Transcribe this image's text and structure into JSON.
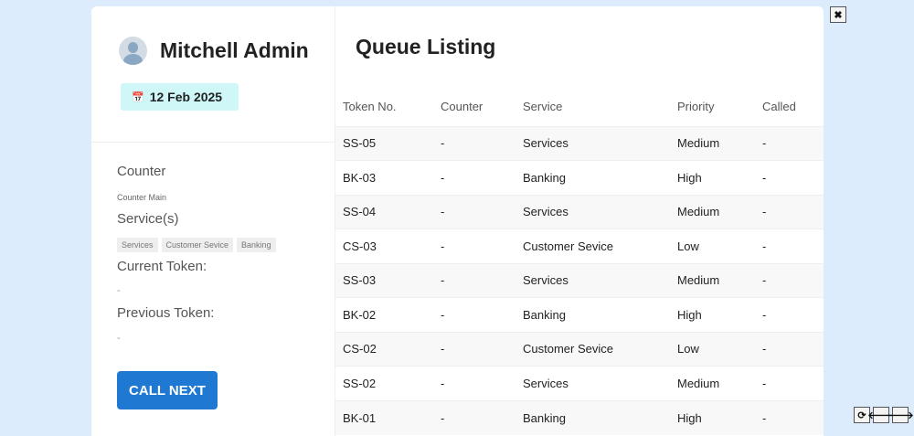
{
  "user": {
    "name": "Mitchell Admin",
    "date": "12 Feb 2025"
  },
  "counter": {
    "label": "Counter",
    "value": "Counter Main",
    "services_label": "Service(s)",
    "services": [
      "Services",
      "Customer Sevice",
      "Banking"
    ],
    "current_label": "Current Token:",
    "current_value": "-",
    "previous_label": "Previous Token:",
    "previous_value": "-",
    "call_next": "CALL NEXT"
  },
  "queue": {
    "title": "Queue Listing",
    "columns": [
      "Token No.",
      "Counter",
      "Service",
      "Priority",
      "Called"
    ],
    "rows": [
      [
        "SS-05",
        "-",
        "Services",
        "Medium",
        "-"
      ],
      [
        "BK-03",
        "-",
        "Banking",
        "High",
        "-"
      ],
      [
        "SS-04",
        "-",
        "Services",
        "Medium",
        "-"
      ],
      [
        "CS-03",
        "-",
        "Customer Sevice",
        "Low",
        "-"
      ],
      [
        "SS-03",
        "-",
        "Services",
        "Medium",
        "-"
      ],
      [
        "BK-02",
        "-",
        "Banking",
        "High",
        "-"
      ],
      [
        "CS-02",
        "-",
        "Customer Sevice",
        "Low",
        "-"
      ],
      [
        "SS-02",
        "-",
        "Services",
        "Medium",
        "-"
      ],
      [
        "BK-01",
        "-",
        "Banking",
        "High",
        "-"
      ]
    ]
  },
  "controls": {
    "close": "✖",
    "refresh": "⟳",
    "prev": "🡐",
    "next": "🡒"
  },
  "colors": {
    "accent": "#1f78d1",
    "date_badge": "#cff7f7",
    "background": "#dcecfc"
  }
}
